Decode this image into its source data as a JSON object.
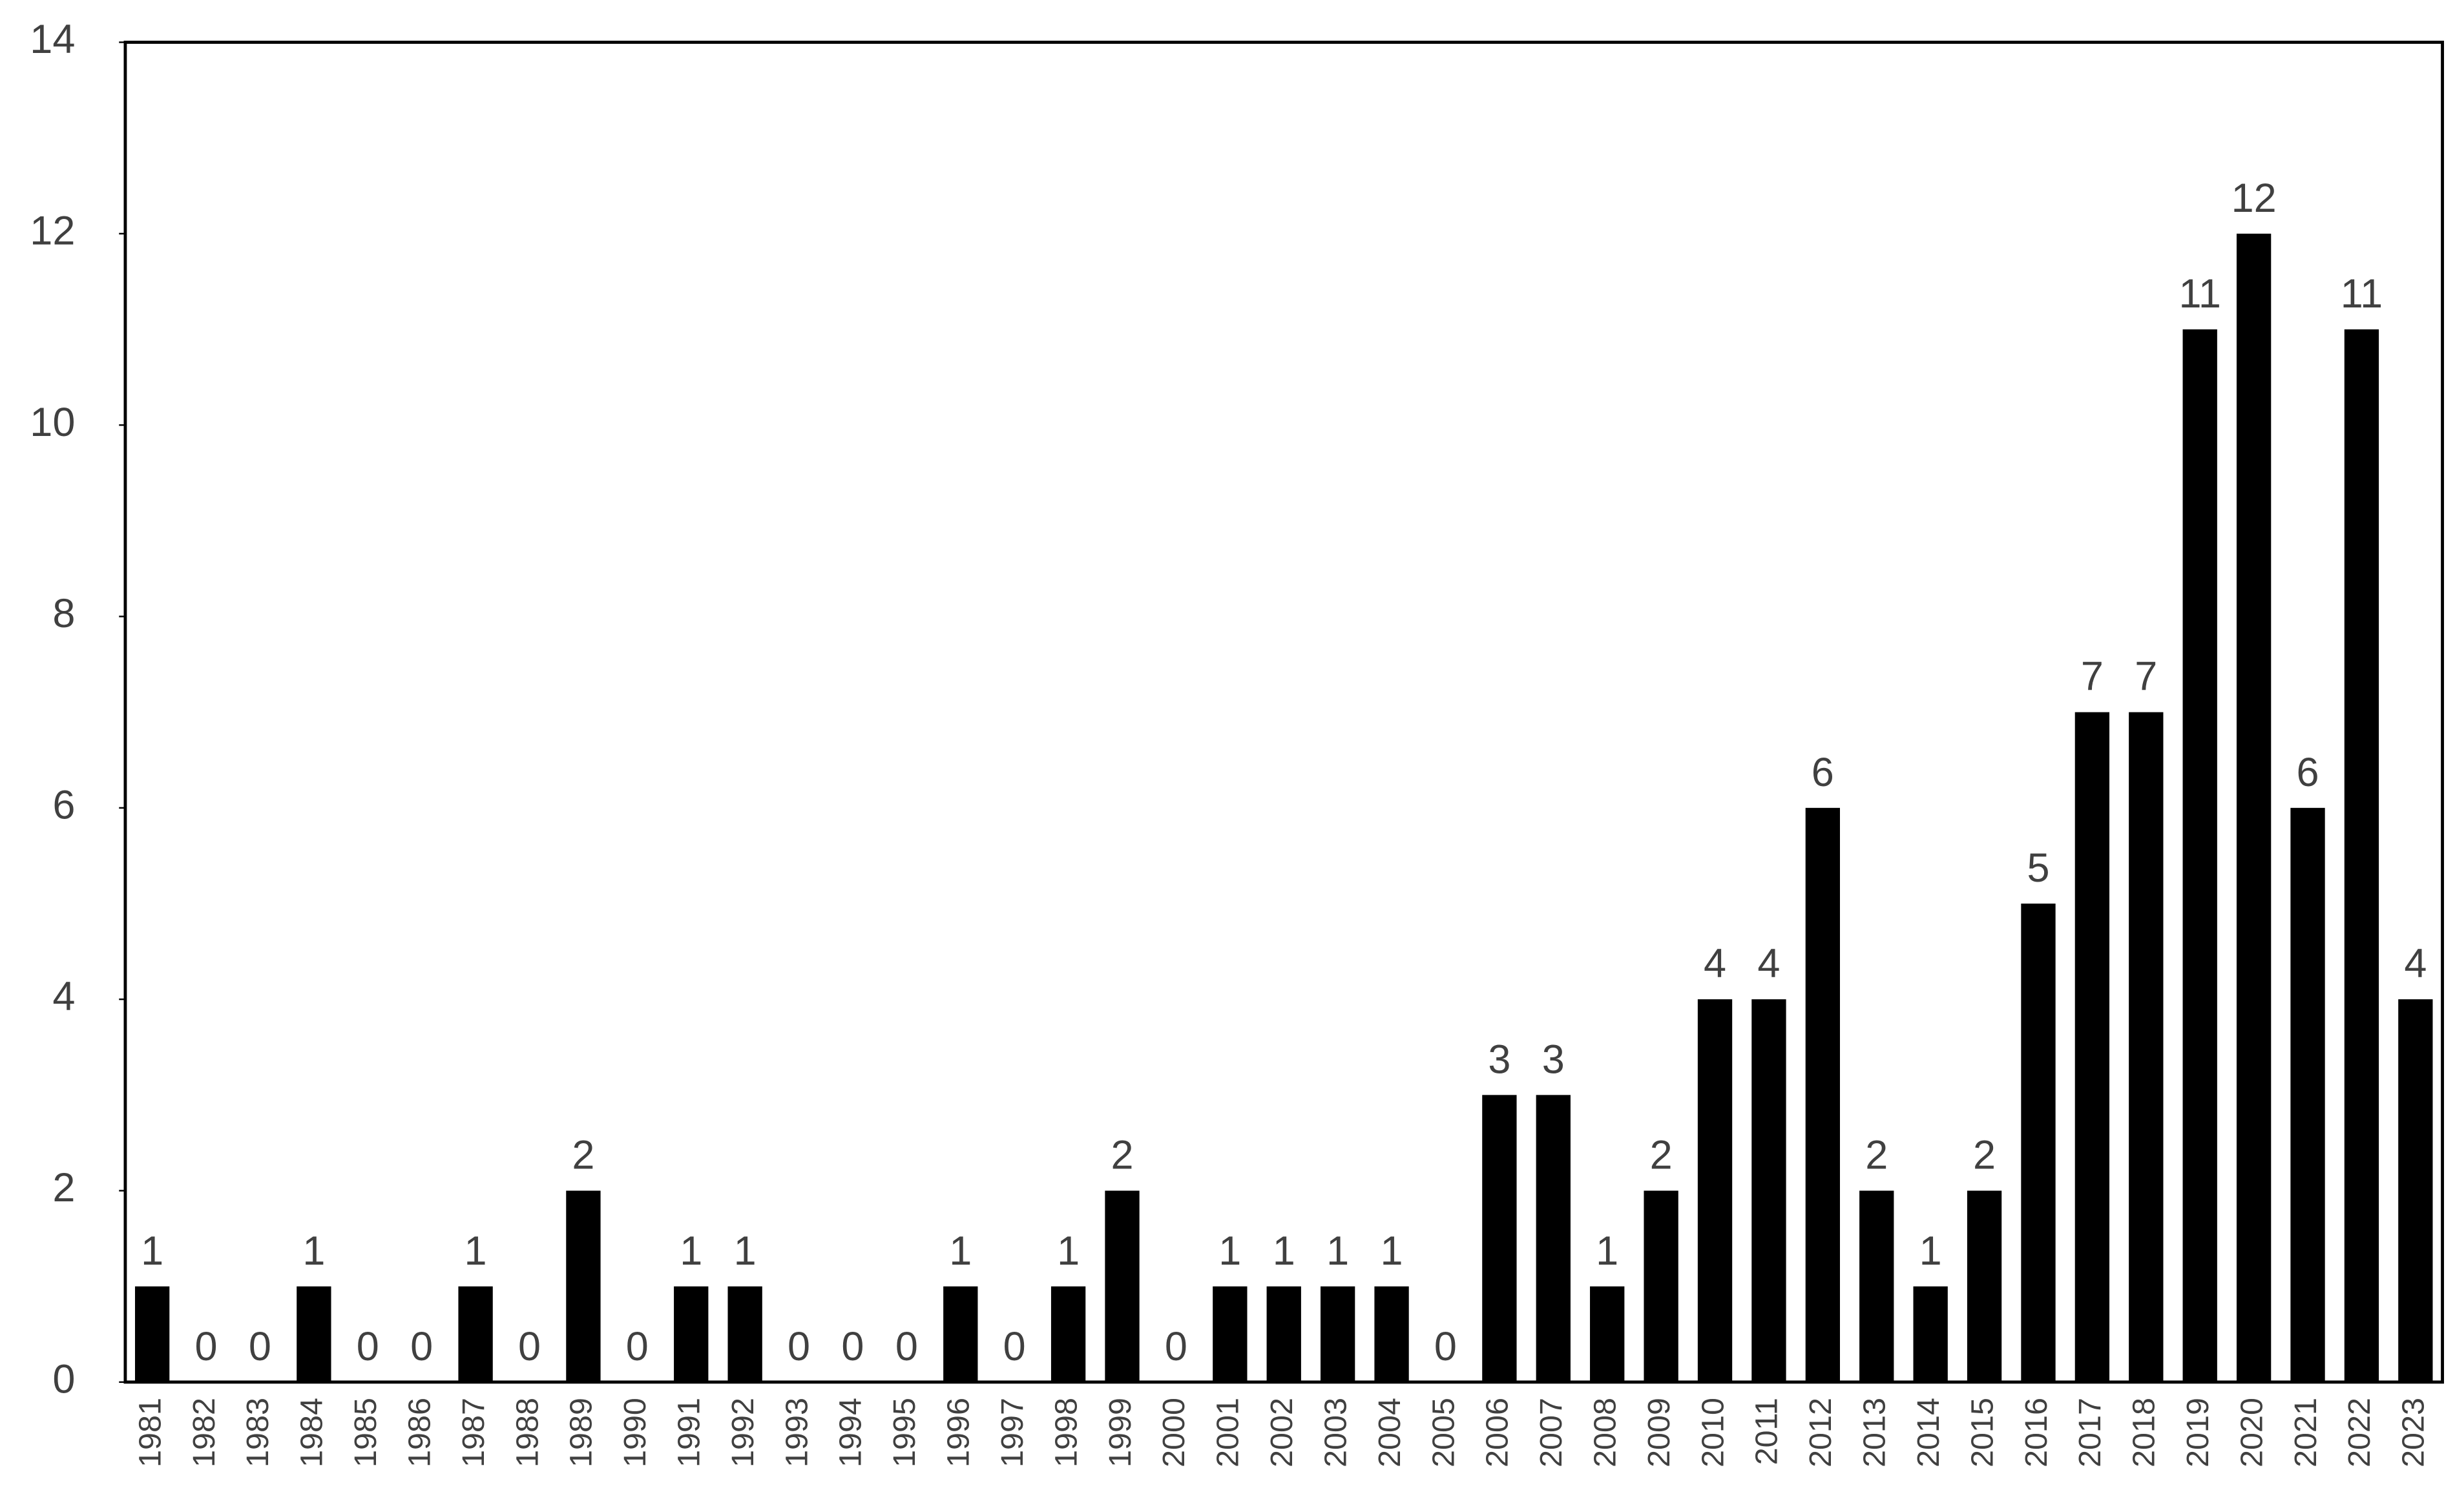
{
  "chart_data": {
    "type": "bar",
    "categories": [
      "1981",
      "1982",
      "1983",
      "1984",
      "1985",
      "1986",
      "1987",
      "1988",
      "1989",
      "1990",
      "1991",
      "1992",
      "1993",
      "1994",
      "1995",
      "1996",
      "1997",
      "1998",
      "1999",
      "2000",
      "2001",
      "2002",
      "2003",
      "2004",
      "2005",
      "2006",
      "2007",
      "2008",
      "2009",
      "2010",
      "2011",
      "2012",
      "2013",
      "2014",
      "2015",
      "2016",
      "2017",
      "2018",
      "2019",
      "2020",
      "2021",
      "2022",
      "2023"
    ],
    "values": [
      1,
      0,
      0,
      1,
      0,
      0,
      1,
      0,
      2,
      0,
      1,
      1,
      0,
      0,
      0,
      1,
      0,
      1,
      2,
      0,
      1,
      1,
      1,
      1,
      0,
      3,
      3,
      1,
      2,
      4,
      4,
      6,
      2,
      1,
      2,
      5,
      7,
      7,
      11,
      12,
      6,
      11,
      4
    ],
    "color": "#000000",
    "ylim": [
      0,
      14
    ],
    "yticks": [
      0,
      2,
      4,
      6,
      8,
      10,
      12,
      14
    ],
    "grid": false,
    "data_labels": true
  }
}
